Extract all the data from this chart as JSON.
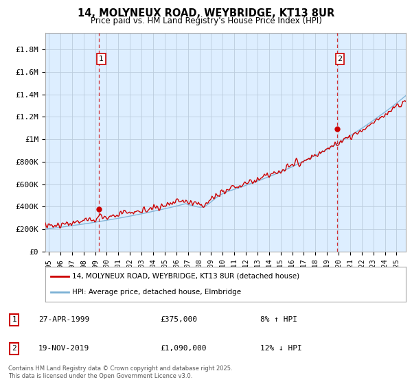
{
  "title_line1": "14, MOLYNEUX ROAD, WEYBRIDGE, KT13 8UR",
  "title_line2": "Price paid vs. HM Land Registry's House Price Index (HPI)",
  "ylabel_ticks": [
    "£0",
    "£200K",
    "£400K",
    "£600K",
    "£800K",
    "£1M",
    "£1.2M",
    "£1.4M",
    "£1.6M",
    "£1.8M"
  ],
  "ytick_values": [
    0,
    200000,
    400000,
    600000,
    800000,
    1000000,
    1200000,
    1400000,
    1600000,
    1800000
  ],
  "ylim": [
    0,
    1950000
  ],
  "xlim_start": 1994.7,
  "xlim_end": 2025.8,
  "red_line_color": "#cc0000",
  "blue_line_color": "#7ab0d4",
  "chart_bg_color": "#ddeeff",
  "marker1_x": 1999.32,
  "marker1_y": 375000,
  "marker2_x": 2019.9,
  "marker2_y": 1090000,
  "legend_label_red": "14, MOLYNEUX ROAD, WEYBRIDGE, KT13 8UR (detached house)",
  "legend_label_blue": "HPI: Average price, detached house, Elmbridge",
  "table_row1": [
    "1",
    "27-APR-1999",
    "£375,000",
    "8% ↑ HPI"
  ],
  "table_row2": [
    "2",
    "19-NOV-2019",
    "£1,090,000",
    "12% ↓ HPI"
  ],
  "footer": "Contains HM Land Registry data © Crown copyright and database right 2025.\nThis data is licensed under the Open Government Licence v3.0.",
  "background_color": "#ffffff",
  "grid_color": "#bbccdd"
}
